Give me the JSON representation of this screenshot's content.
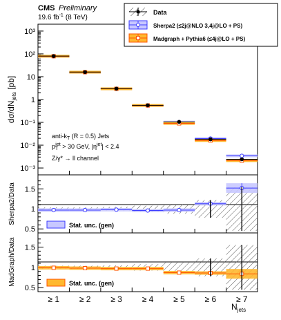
{
  "header": {
    "experiment": "CMS",
    "status": "Preliminary",
    "lumi_main": "19.6 fb",
    "lumi_sup": "-1",
    "energy": "(8 TeV)"
  },
  "legend": {
    "data_label": "Data",
    "sherpa_label": "Sherpa2 (≤2j@NLO 3,4j@LO + PS)",
    "madgraph_label": "Madgraph + Pythia6 (≤4j@LO + PS)"
  },
  "annotations": {
    "line1": "anti-kT (R = 0.5) Jets",
    "line2": "pT jet > 30 GeV, |ηjet| < 2.4",
    "line3": "Z/γ* → ll channel"
  },
  "ratio_legends": {
    "sherpa": "Stat. unc. (gen)",
    "madgraph": "Stat. unc. (gen)"
  },
  "axes": {
    "y_main": "dσ/dN_jets [pb]",
    "y_sherpa": "Sherpa2/Data",
    "y_madgraph": "MadGraph/Data",
    "x": "N_jets"
  },
  "colors": {
    "sherpa": "#3b3bff",
    "sherpa_band": "#c8c8ff",
    "madgraph": "#ff5500",
    "madgraph_band": "#ffb830",
    "data": "#000000"
  },
  "chart_data": [
    {
      "type": "scatter",
      "panel": "main",
      "y_scale": "log",
      "ylim": [
        0.0005,
        2000
      ],
      "y_ticks": [
        "10³",
        "10²",
        "10",
        "1",
        "10⁻¹",
        "10⁻²",
        "10⁻³"
      ],
      "y_tick_values": [
        1000,
        100,
        10,
        1,
        0.1,
        0.01,
        0.001
      ],
      "categories": [
        "≥ 1",
        "≥ 2",
        "≥ 3",
        "≥ 4",
        "≥ 5",
        "≥ 6",
        "≥ 7"
      ],
      "ylabel": "dσ/dN_jets [pb]",
      "xlabel": "N_jets",
      "series": [
        {
          "name": "Data",
          "values": [
            80,
            16,
            3,
            0.56,
            0.105,
            0.018,
            0.0024
          ]
        },
        {
          "name": "Sherpa2 (≤2j@NLO 3,4j@LO + PS)",
          "values": [
            78,
            15.6,
            2.95,
            0.54,
            0.102,
            0.0195,
            0.0034
          ]
        },
        {
          "name": "Madgraph + Pythia6 (≤4j@LO + PS)",
          "values": [
            79,
            15.8,
            2.95,
            0.55,
            0.09,
            0.016,
            0.0021
          ]
        }
      ]
    },
    {
      "type": "scatter",
      "panel": "ratio-sherpa",
      "ylim": [
        0.4,
        1.85
      ],
      "y_ticks": [
        "0.5",
        "1",
        "1.5"
      ],
      "y_tick_values": [
        0.5,
        1,
        1.5
      ],
      "ylabel": "Sherpa2/Data",
      "categories": [
        "≥ 1",
        "≥ 2",
        "≥ 3",
        "≥ 4",
        "≥ 5",
        "≥ 6",
        "≥ 7"
      ],
      "values": [
        0.97,
        0.97,
        0.98,
        0.96,
        0.97,
        1.13,
        1.52
      ],
      "data_unc": [
        0.04,
        0.04,
        0.05,
        0.08,
        0.12,
        0.22,
        0.55
      ]
    },
    {
      "type": "scatter",
      "panel": "ratio-madgraph",
      "ylim": [
        0.4,
        1.85
      ],
      "y_ticks": [
        "0.5",
        "1",
        "1.5"
      ],
      "y_tick_values": [
        0.5,
        1,
        1.5
      ],
      "ylabel": "MadGraph/Data",
      "xlabel": "N_jets",
      "categories": [
        "≥ 1",
        "≥ 2",
        "≥ 3",
        "≥ 4",
        "≥ 5",
        "≥ 6",
        "≥ 7"
      ],
      "values": [
        0.99,
        0.98,
        0.97,
        0.97,
        0.87,
        0.86,
        0.84
      ],
      "data_unc": [
        0.04,
        0.04,
        0.05,
        0.08,
        0.12,
        0.22,
        0.55
      ]
    }
  ]
}
